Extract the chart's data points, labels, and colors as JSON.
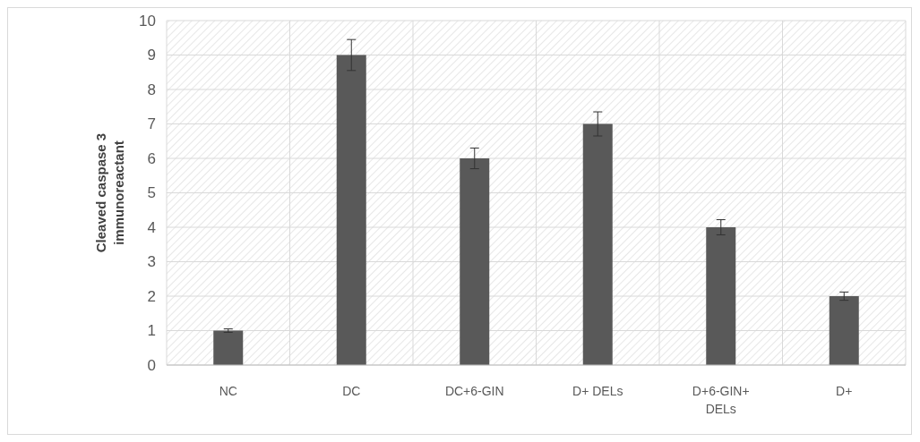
{
  "chart_data": {
    "type": "bar",
    "ylabel": "Cleaved caspase 3 immunoreactant",
    "categories": [
      "NC",
      "DC",
      "DC+6-GIN",
      "D+ DELs",
      "D+6-GIN+ DELs",
      "D+"
    ],
    "values": [
      1,
      9,
      6,
      7,
      4,
      2
    ],
    "errors": [
      0.05,
      0.45,
      0.3,
      0.35,
      0.22,
      0.12
    ],
    "color": "#595959",
    "ylim": [
      0,
      10
    ],
    "yticks": [
      0,
      1,
      2,
      3,
      4,
      5,
      6,
      7,
      8,
      9,
      10
    ],
    "grid": true
  }
}
